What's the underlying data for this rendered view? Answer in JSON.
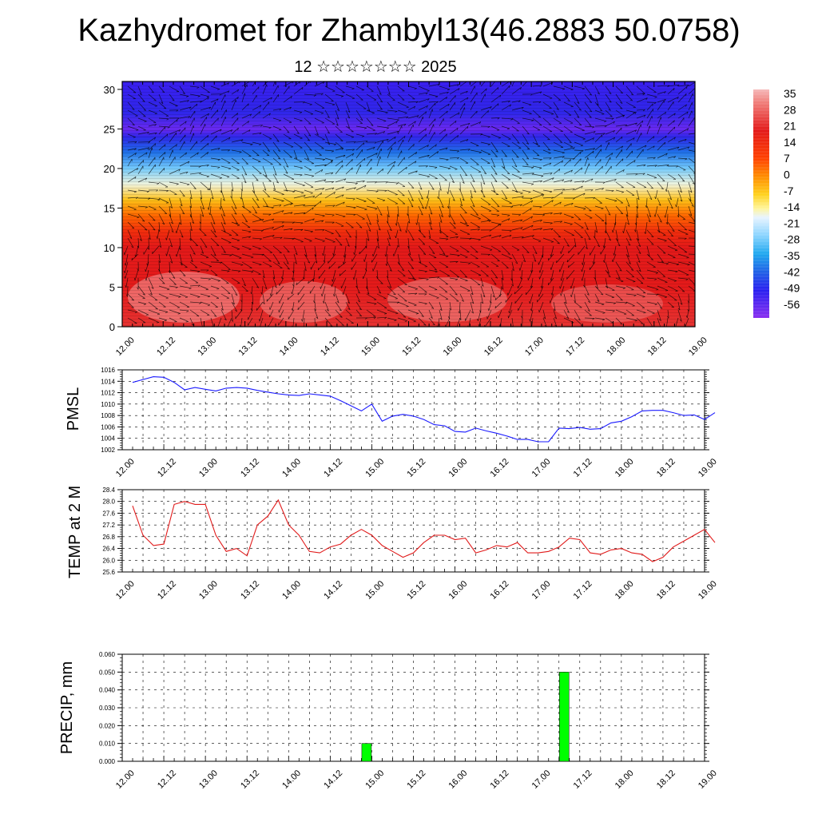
{
  "title": "Kazhydromet for Zhambyl13(46.2883 50.0758)",
  "subtitle": "12 ☆☆☆☆☆☆☆ 2025",
  "time_labels": [
    "12.00",
    "12.12",
    "13.00",
    "13.12",
    "14.00",
    "14.12",
    "15.00",
    "15.12",
    "16.00",
    "16.12",
    "17.00",
    "17.12",
    "18.00",
    "18.12",
    "19.00"
  ],
  "chart_data": [
    {
      "type": "heatmap",
      "title": "",
      "x": [
        "12.00",
        "12.12",
        "13.00",
        "13.12",
        "14.00",
        "14.12",
        "15.00",
        "15.12",
        "16.00",
        "16.12",
        "17.00",
        "17.12",
        "18.00",
        "18.12",
        "19.00"
      ],
      "y_ticks": [
        0,
        5,
        10,
        15,
        20,
        25,
        30
      ],
      "ylim": [
        0,
        31
      ],
      "colorbar_labels": [
        "35",
        "28",
        "21",
        "14",
        "7",
        "0",
        "-7",
        "-14",
        "-21",
        "-28",
        "-35",
        "-42",
        "-49",
        "-56"
      ],
      "colorbar_range": [
        -60,
        38
      ],
      "profile_levels": [
        0,
        5,
        8,
        10,
        12,
        14,
        16,
        18,
        20,
        22,
        24,
        25,
        27,
        31
      ],
      "profile_values": [
        32,
        30,
        26,
        22,
        16,
        8,
        -2,
        -14,
        -24,
        -38,
        -50,
        -58,
        -50,
        -55
      ],
      "overlay": "wind vectors"
    },
    {
      "type": "line",
      "ylabel": "PMSL",
      "ylim": [
        1002,
        1016
      ],
      "y_ticks": [
        "1002",
        "1004",
        "1006",
        "1008",
        "1010",
        "1012",
        "1014",
        "1016"
      ],
      "x": [
        "12.00",
        "12.03",
        "12.06",
        "12.09",
        "12.12",
        "12.15",
        "12.18",
        "12.21",
        "13.00",
        "13.03",
        "13.06",
        "13.09",
        "13.12",
        "13.15",
        "13.18",
        "13.21",
        "14.00",
        "14.03",
        "14.06",
        "14.09",
        "14.12",
        "14.15",
        "14.18",
        "14.21",
        "15.00",
        "15.03",
        "15.06",
        "15.09",
        "15.12",
        "15.15",
        "15.18",
        "15.21",
        "16.00",
        "16.03",
        "16.06",
        "16.09",
        "16.12",
        "16.15",
        "16.18",
        "16.21",
        "17.00",
        "17.03",
        "17.06",
        "17.09",
        "17.12",
        "17.15",
        "17.18",
        "17.21",
        "18.00",
        "18.03",
        "18.06",
        "18.09",
        "18.12",
        "18.15",
        "18.18",
        "18.21",
        "19.00"
      ],
      "values": [
        1013.8,
        1014.3,
        1014.8,
        1014.7,
        1013.8,
        1012.5,
        1012.9,
        1012.6,
        1012.3,
        1012.8,
        1012.9,
        1012.8,
        1012.4,
        1012.1,
        1011.8,
        1011.6,
        1011.5,
        1011.8,
        1011.6,
        1011.4,
        1010.6,
        1009.7,
        1008.8,
        1010.0,
        1007.0,
        1007.9,
        1008.2,
        1007.9,
        1007.3,
        1006.4,
        1006.2,
        1005.2,
        1005.1,
        1005.8,
        1005.3,
        1004.9,
        1004.4,
        1003.8,
        1003.8,
        1003.4,
        1003.4,
        1005.8,
        1005.7,
        1005.9,
        1005.6,
        1005.7,
        1006.7,
        1007.0,
        1007.8,
        1008.8,
        1008.9,
        1008.9,
        1008.5,
        1008.0,
        1008.1,
        1007.3,
        1008.5
      ],
      "color": "#1a1aff"
    },
    {
      "type": "line",
      "ylabel": "TEMP at 2 M",
      "ylim": [
        25.6,
        28.4
      ],
      "y_ticks": [
        "25.6",
        "26.0",
        "26.4",
        "26.8",
        "27.2",
        "27.6",
        "28.0",
        "28.4"
      ],
      "x": [
        "12.00",
        "12.03",
        "12.06",
        "12.09",
        "12.12",
        "12.15",
        "12.18",
        "12.21",
        "13.00",
        "13.03",
        "13.06",
        "13.09",
        "13.12",
        "13.15",
        "13.18",
        "13.21",
        "14.00",
        "14.03",
        "14.06",
        "14.09",
        "14.12",
        "14.15",
        "14.18",
        "14.21",
        "15.00",
        "15.03",
        "15.06",
        "15.09",
        "15.12",
        "15.15",
        "15.18",
        "15.21",
        "16.00",
        "16.03",
        "16.06",
        "16.09",
        "16.12",
        "16.15",
        "16.18",
        "16.21",
        "17.00",
        "17.03",
        "17.06",
        "17.09",
        "17.12",
        "17.15",
        "17.18",
        "17.21",
        "18.00",
        "18.03",
        "18.06",
        "18.09",
        "18.12",
        "18.15",
        "18.18",
        "18.21",
        "19.00"
      ],
      "values": [
        27.85,
        26.85,
        26.5,
        26.55,
        27.9,
        28.0,
        27.9,
        27.9,
        26.85,
        26.3,
        26.4,
        26.15,
        27.2,
        27.5,
        28.05,
        27.2,
        26.85,
        26.3,
        26.25,
        26.45,
        26.55,
        26.85,
        27.05,
        26.85,
        26.5,
        26.3,
        26.1,
        26.25,
        26.6,
        26.85,
        26.85,
        26.7,
        26.75,
        26.25,
        26.35,
        26.5,
        26.45,
        26.6,
        26.25,
        26.25,
        26.3,
        26.45,
        26.75,
        26.7,
        26.25,
        26.2,
        26.35,
        26.4,
        26.25,
        26.2,
        25.95,
        26.1,
        26.45,
        26.65,
        26.85,
        27.05,
        26.6
      ],
      "color": "#e11a1a"
    },
    {
      "type": "bar",
      "ylabel": "PRECIP, mm",
      "ylim": [
        0,
        0.06
      ],
      "y_ticks": [
        "0.000",
        "0.010",
        "0.020",
        "0.030",
        "0.040",
        "0.050",
        "0.060"
      ],
      "x": [
        "14.21",
        "17.06"
      ],
      "values": [
        0.01,
        0.05
      ],
      "color": "#00ff00"
    }
  ]
}
